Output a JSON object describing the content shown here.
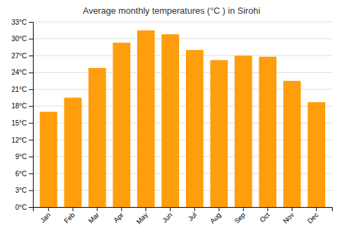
{
  "chart_data": {
    "type": "bar",
    "title": "Average monthly temperatures (°C ) in Sirohi",
    "categories": [
      "Jan",
      "Feb",
      "Mar",
      "Apr",
      "May",
      "Jun",
      "Jul",
      "Aug",
      "Sep",
      "Oct",
      "Nov",
      "Dec"
    ],
    "values": [
      17.0,
      19.5,
      24.8,
      29.3,
      31.5,
      30.8,
      28.0,
      26.2,
      27.0,
      26.8,
      22.5,
      18.7
    ],
    "color": "#ff9e0d",
    "ylim": [
      0,
      33
    ],
    "yticks": [
      {
        "value": 0,
        "label": "0°C"
      },
      {
        "value": 3,
        "label": "3°C"
      },
      {
        "value": 6,
        "label": "6°C"
      },
      {
        "value": 9,
        "label": "9°C"
      },
      {
        "value": 12,
        "label": "12°C"
      },
      {
        "value": 15,
        "label": "15°C"
      },
      {
        "value": 18,
        "label": "18°C"
      },
      {
        "value": 21,
        "label": "21°C"
      },
      {
        "value": 24,
        "label": "24°C"
      },
      {
        "value": 27,
        "label": "27°C"
      },
      {
        "value": 30,
        "label": "30°C"
      },
      {
        "value": 33,
        "label": "33°C"
      }
    ],
    "grid": true
  }
}
